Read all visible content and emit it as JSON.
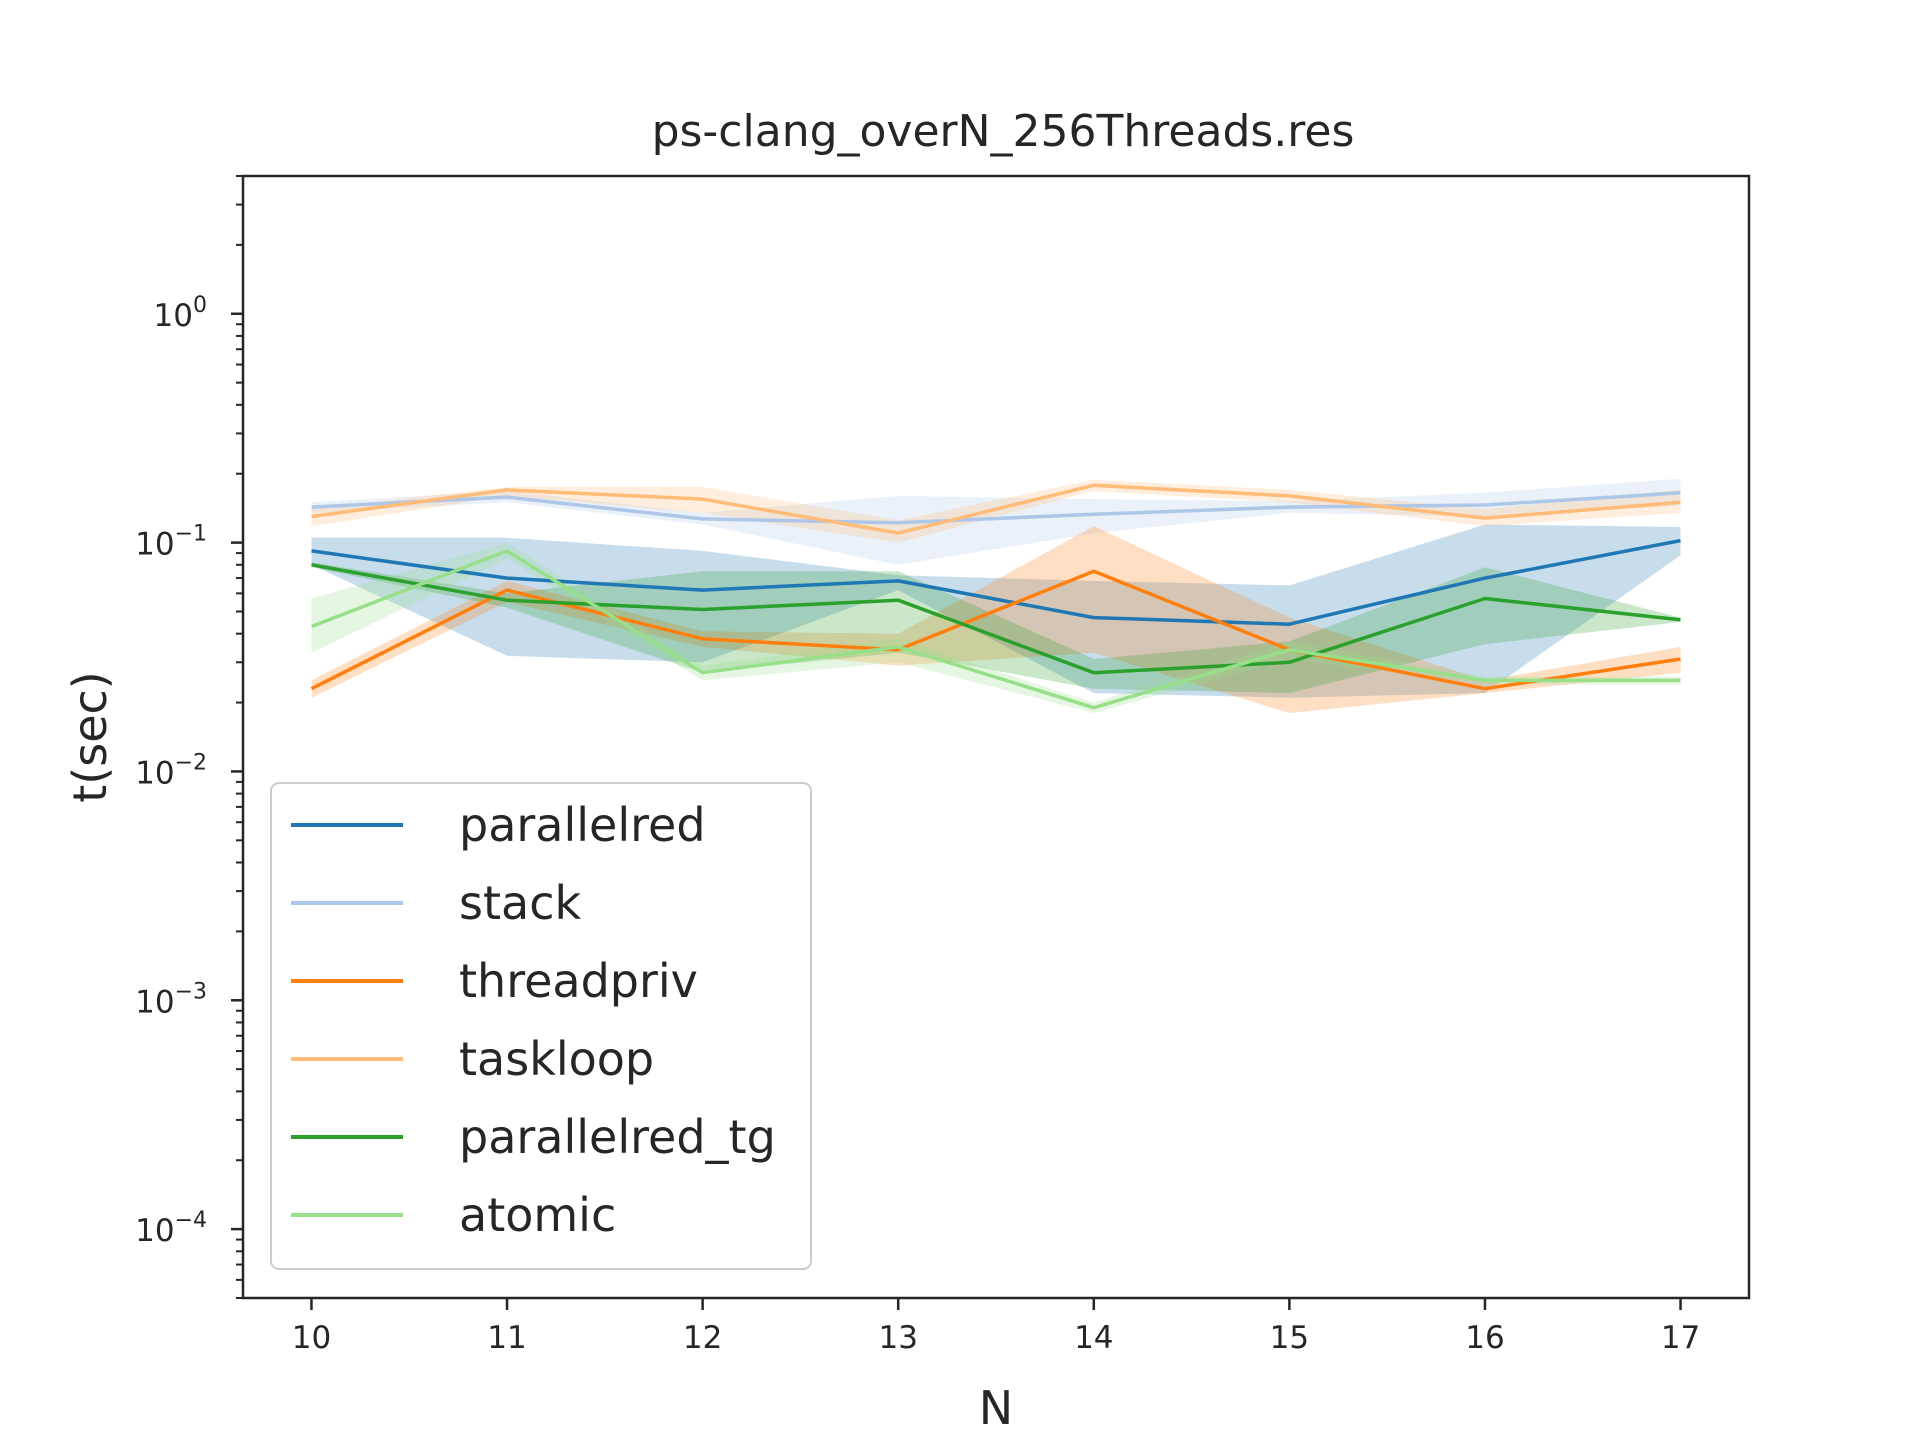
{
  "chart_data": {
    "type": "line",
    "title": "ps-clang_overN_256Threads.res",
    "xlabel": "N",
    "ylabel": "t(sec)",
    "yscale": "log",
    "xlim": [
      9.65,
      17.35
    ],
    "ylim": [
      5e-05,
      4
    ],
    "x": [
      10,
      11,
      12,
      13,
      14,
      15,
      16,
      17
    ],
    "x_ticks": [
      "10",
      "11",
      "12",
      "13",
      "14",
      "15",
      "16",
      "17"
    ],
    "y_ticks": [
      {
        "value": 1,
        "base": "10",
        "exp": "0"
      },
      {
        "value": 0.1,
        "base": "10",
        "exp": "−1"
      },
      {
        "value": 0.01,
        "base": "10",
        "exp": "−2"
      },
      {
        "value": 0.001,
        "base": "10",
        "exp": "−3"
      },
      {
        "value": 0.0001,
        "base": "10",
        "exp": "−4"
      }
    ],
    "grid": false,
    "legend_position": "lower-left",
    "series": [
      {
        "name": "parallelred",
        "color": "#1f77b4",
        "values": [
          0.092,
          0.07,
          0.062,
          0.068,
          0.047,
          0.044,
          0.07,
          0.102
        ],
        "lower": [
          0.08,
          0.032,
          0.03,
          0.062,
          0.022,
          0.021,
          0.022,
          0.088
        ],
        "upper": [
          0.105,
          0.105,
          0.092,
          0.072,
          0.068,
          0.065,
          0.12,
          0.117
        ]
      },
      {
        "name": "stack",
        "color": "#aec7e8",
        "values": [
          0.143,
          0.158,
          0.127,
          0.122,
          0.133,
          0.143,
          0.146,
          0.165
        ],
        "lower": [
          0.135,
          0.15,
          0.12,
          0.08,
          0.11,
          0.135,
          0.13,
          0.145
        ],
        "upper": [
          0.15,
          0.168,
          0.135,
          0.16,
          0.155,
          0.152,
          0.165,
          0.19
        ]
      },
      {
        "name": "threadpriv",
        "color": "#ff7f0e",
        "values": [
          0.023,
          0.062,
          0.038,
          0.034,
          0.075,
          0.034,
          0.023,
          0.031
        ],
        "lower": [
          0.021,
          0.055,
          0.035,
          0.029,
          0.033,
          0.018,
          0.022,
          0.027
        ],
        "upper": [
          0.025,
          0.068,
          0.041,
          0.04,
          0.118,
          0.047,
          0.025,
          0.035
        ]
      },
      {
        "name": "taskloop",
        "color": "#ffbb78",
        "values": [
          0.13,
          0.17,
          0.155,
          0.11,
          0.178,
          0.16,
          0.128,
          0.15
        ],
        "lower": [
          0.118,
          0.16,
          0.135,
          0.1,
          0.168,
          0.15,
          0.118,
          0.135
        ],
        "upper": [
          0.14,
          0.175,
          0.175,
          0.125,
          0.188,
          0.17,
          0.14,
          0.17
        ]
      },
      {
        "name": "parallelred_tg",
        "color": "#2ca02c",
        "values": [
          0.08,
          0.056,
          0.051,
          0.056,
          0.027,
          0.03,
          0.057,
          0.046
        ],
        "lower": [
          0.078,
          0.052,
          0.027,
          0.033,
          0.023,
          0.022,
          0.036,
          0.045
        ],
        "upper": [
          0.082,
          0.06,
          0.075,
          0.075,
          0.031,
          0.037,
          0.078,
          0.047
        ]
      },
      {
        "name": "atomic",
        "color": "#98df8a",
        "values": [
          0.043,
          0.092,
          0.027,
          0.035,
          0.019,
          0.034,
          0.025,
          0.025
        ],
        "lower": [
          0.033,
          0.085,
          0.025,
          0.03,
          0.018,
          0.031,
          0.024,
          0.024
        ],
        "upper": [
          0.057,
          0.1,
          0.029,
          0.038,
          0.02,
          0.037,
          0.026,
          0.026
        ]
      }
    ]
  }
}
